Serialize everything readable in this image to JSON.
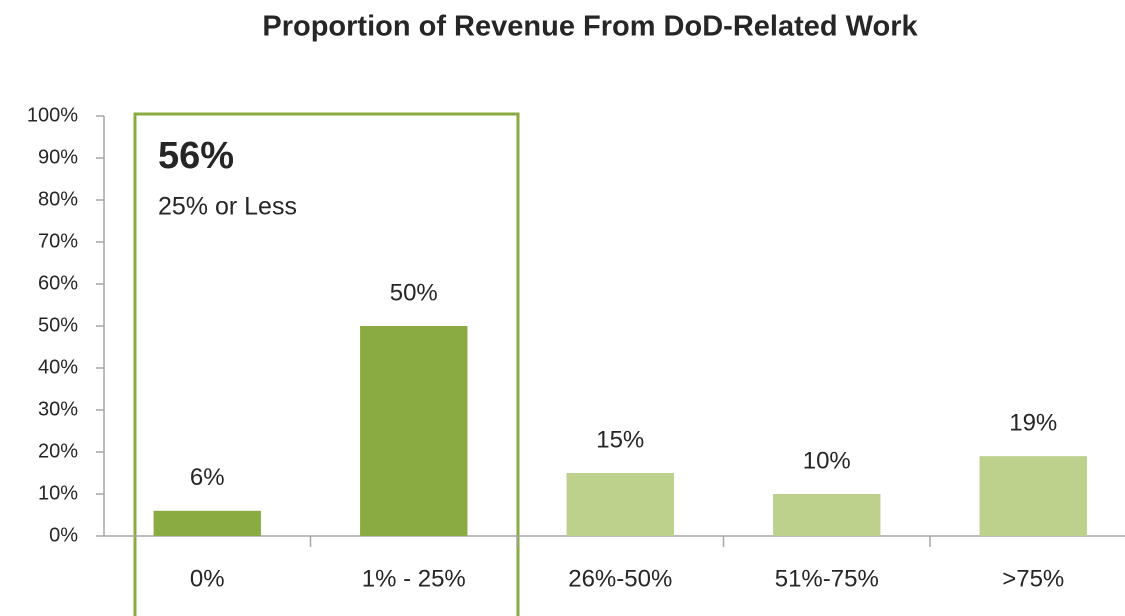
{
  "chart_data": {
    "type": "bar",
    "title": "Proportion of Revenue From DoD-Related Work",
    "categories": [
      "0%",
      "1% - 25%",
      "26%-50%",
      "51%-75%",
      ">75%"
    ],
    "values": [
      6,
      50,
      15,
      10,
      19
    ],
    "value_labels": [
      "6%",
      "50%",
      "15%",
      "10%",
      "19%"
    ],
    "colors": [
      "#8aab42",
      "#8aab42",
      "#bdd18c",
      "#bdd18c",
      "#bdd18c"
    ],
    "ylim": [
      0,
      100
    ],
    "yticks": [
      {
        "value": 0,
        "label": "0%"
      },
      {
        "value": 10,
        "label": "10%"
      },
      {
        "value": 20,
        "label": "20%"
      },
      {
        "value": 30,
        "label": "30%"
      },
      {
        "value": 40,
        "label": "40%"
      },
      {
        "value": 50,
        "label": "50%"
      },
      {
        "value": 60,
        "label": "60%"
      },
      {
        "value": 70,
        "label": "70%"
      },
      {
        "value": 80,
        "label": "80%"
      },
      {
        "value": 90,
        "label": "90%"
      },
      {
        "value": 100,
        "label": "100%"
      }
    ],
    "grid": false,
    "annotation": {
      "value": "56%",
      "text": "25% or Less"
    }
  }
}
